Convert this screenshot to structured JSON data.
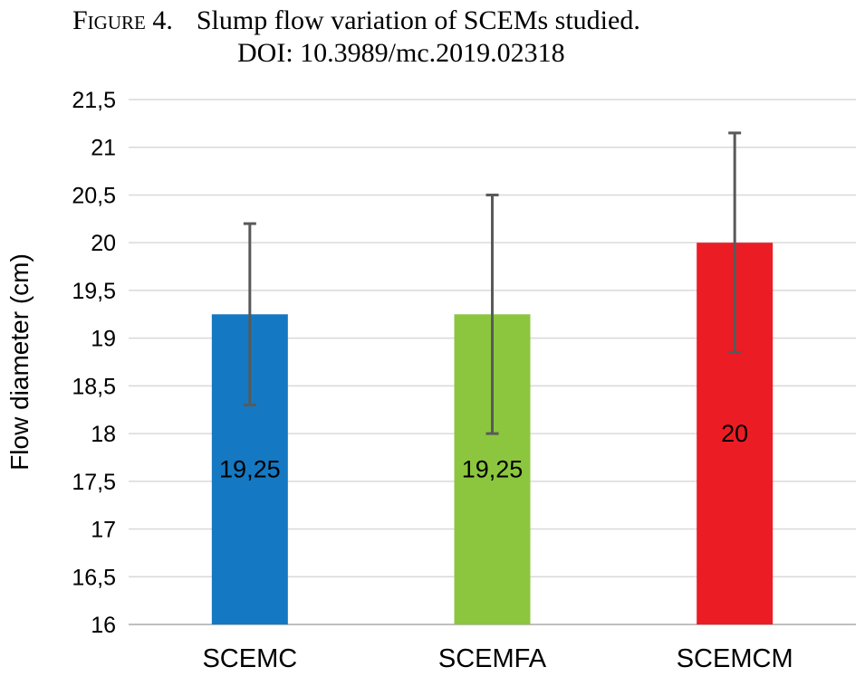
{
  "caption": {
    "figure_label": "Figure 4.",
    "title": "Slump flow variation of SCEMs studied.",
    "doi": "DOI: 10.3989/mc.2019.02318"
  },
  "chart_data": {
    "type": "bar",
    "title": "Slump flow variation of SCEMs studied.",
    "xlabel": "",
    "ylabel": "Flow diameter (cm)",
    "ylim": [
      16,
      21.5
    ],
    "yticks": [
      16,
      16.5,
      17,
      17.5,
      18,
      18.5,
      19,
      19.5,
      20,
      20.5,
      21,
      21.5
    ],
    "ytick_labels": [
      "16",
      "16,5",
      "17",
      "17,5",
      "18",
      "18,5",
      "19",
      "19,5",
      "20",
      "20,5",
      "21",
      "21,5"
    ],
    "grid": true,
    "legend": "none",
    "categories": [
      "SCEMC",
      "SCEMFA",
      "SCEMCM"
    ],
    "values": [
      19.25,
      19.25,
      20
    ],
    "data_labels": [
      "19,25",
      "19,25",
      "20"
    ],
    "error_bars": [
      {
        "low": 18.3,
        "high": 20.2
      },
      {
        "low": 18.0,
        "high": 20.5
      },
      {
        "low": 18.85,
        "high": 21.15
      }
    ],
    "colors": [
      "#1479c2",
      "#8cc63f",
      "#ec1c24"
    ]
  }
}
